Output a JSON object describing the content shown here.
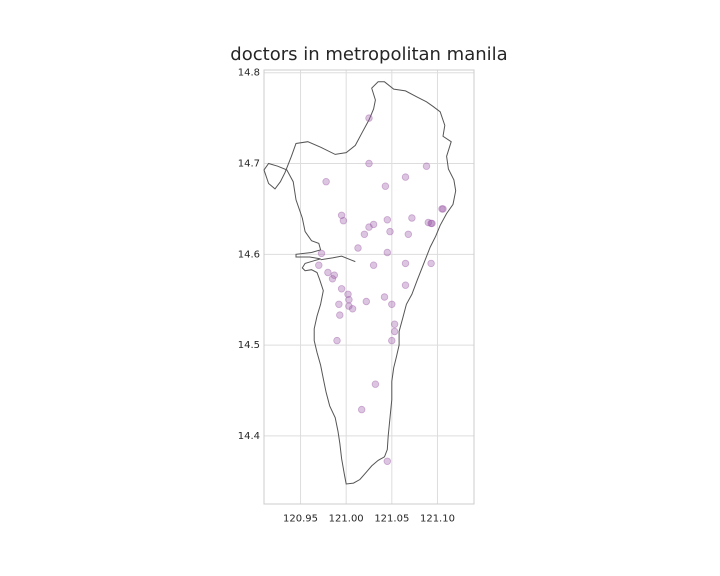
{
  "chart_data": {
    "type": "scatter",
    "title": "doctors in metropolitan manila",
    "xlabel": "",
    "ylabel": "",
    "xlim": [
      120.91,
      121.14
    ],
    "ylim": [
      14.325,
      14.803
    ],
    "xticks": [
      120.95,
      121.0,
      121.05,
      121.1
    ],
    "yticks": [
      14.4,
      14.5,
      14.6,
      14.7,
      14.8
    ],
    "xtick_labels": [
      "120.95",
      "121.00",
      "121.05",
      "121.10"
    ],
    "ytick_labels": [
      "14.4",
      "14.5",
      "14.6",
      "14.7",
      "14.8"
    ],
    "grid": true,
    "point_color": "#9b59a6",
    "boundary_color": "#555555",
    "boundary": [
      [
        121.0,
        14.347
      ],
      [
        120.998,
        14.358
      ],
      [
        120.995,
        14.375
      ],
      [
        120.993,
        14.392
      ],
      [
        120.991,
        14.405
      ],
      [
        120.988,
        14.42
      ],
      [
        120.982,
        14.433
      ],
      [
        120.978,
        14.448
      ],
      [
        120.975,
        14.463
      ],
      [
        120.972,
        14.478
      ],
      [
        120.968,
        14.492
      ],
      [
        120.965,
        14.505
      ],
      [
        120.965,
        14.518
      ],
      [
        120.968,
        14.532
      ],
      [
        120.972,
        14.545
      ],
      [
        120.975,
        14.56
      ],
      [
        120.971,
        14.572
      ],
      [
        120.968,
        14.58
      ],
      [
        120.962,
        14.583
      ],
      [
        120.955,
        14.582
      ],
      [
        120.952,
        14.585
      ],
      [
        120.955,
        14.59
      ],
      [
        120.965,
        14.593
      ],
      [
        120.972,
        14.595
      ],
      [
        120.96,
        14.597
      ],
      [
        120.945,
        14.597
      ],
      [
        120.945,
        14.6
      ],
      [
        120.962,
        14.602
      ],
      [
        120.972,
        14.605
      ],
      [
        120.97,
        14.612
      ],
      [
        120.962,
        14.615
      ],
      [
        120.955,
        14.625
      ],
      [
        120.952,
        14.64
      ],
      [
        120.945,
        14.66
      ],
      [
        120.942,
        14.68
      ],
      [
        120.935,
        14.693
      ],
      [
        120.925,
        14.697
      ],
      [
        120.915,
        14.7
      ],
      [
        120.91,
        14.693
      ],
      [
        120.915,
        14.678
      ],
      [
        120.922,
        14.672
      ],
      [
        120.928,
        14.68
      ],
      [
        120.933,
        14.69
      ],
      [
        120.94,
        14.708
      ],
      [
        120.945,
        14.722
      ],
      [
        120.958,
        14.724
      ],
      [
        120.972,
        14.718
      ],
      [
        120.988,
        14.71
      ],
      [
        121.0,
        14.712
      ],
      [
        121.01,
        14.72
      ],
      [
        121.018,
        14.735
      ],
      [
        121.025,
        14.748
      ],
      [
        121.03,
        14.76
      ],
      [
        121.032,
        14.77
      ],
      [
        121.028,
        14.783
      ],
      [
        121.035,
        14.79
      ],
      [
        121.042,
        14.79
      ],
      [
        121.052,
        14.782
      ],
      [
        121.065,
        14.78
      ],
      [
        121.078,
        14.773
      ],
      [
        121.088,
        14.768
      ],
      [
        121.095,
        14.763
      ],
      [
        121.103,
        14.757
      ],
      [
        121.108,
        14.742
      ],
      [
        121.106,
        14.73
      ],
      [
        121.115,
        14.724
      ],
      [
        121.11,
        14.708
      ],
      [
        121.112,
        14.694
      ],
      [
        121.118,
        14.682
      ],
      [
        121.12,
        14.67
      ],
      [
        121.117,
        14.655
      ],
      [
        121.11,
        14.645
      ],
      [
        121.103,
        14.632
      ],
      [
        121.098,
        14.62
      ],
      [
        121.092,
        14.608
      ],
      [
        121.085,
        14.59
      ],
      [
        121.078,
        14.572
      ],
      [
        121.072,
        14.556
      ],
      [
        121.066,
        14.545
      ],
      [
        121.062,
        14.53
      ],
      [
        121.058,
        14.515
      ],
      [
        121.058,
        14.5
      ],
      [
        121.055,
        14.487
      ],
      [
        121.052,
        14.475
      ],
      [
        121.05,
        14.46
      ],
      [
        121.05,
        14.44
      ],
      [
        121.048,
        14.42
      ],
      [
        121.046,
        14.4
      ],
      [
        121.045,
        14.385
      ],
      [
        121.042,
        14.377
      ],
      [
        121.035,
        14.373
      ],
      [
        121.028,
        14.367
      ],
      [
        121.022,
        14.36
      ],
      [
        121.015,
        14.352
      ],
      [
        121.008,
        14.348
      ],
      [
        121.0,
        14.347
      ]
    ],
    "river": [
      [
        120.972,
        14.594
      ],
      [
        120.985,
        14.596
      ],
      [
        120.995,
        14.598
      ],
      [
        121.005,
        14.594
      ],
      [
        121.01,
        14.592
      ]
    ],
    "points": [
      [
        121.025,
        14.75
      ],
      [
        121.025,
        14.7
      ],
      [
        120.978,
        14.68
      ],
      [
        121.065,
        14.685
      ],
      [
        121.088,
        14.697
      ],
      [
        121.043,
        14.675
      ],
      [
        120.995,
        14.643
      ],
      [
        120.997,
        14.637
      ],
      [
        121.025,
        14.63
      ],
      [
        121.03,
        14.633
      ],
      [
        121.045,
        14.638
      ],
      [
        121.072,
        14.64
      ],
      [
        121.09,
        14.635
      ],
      [
        121.093,
        14.634
      ],
      [
        121.094,
        14.634
      ],
      [
        121.105,
        14.65
      ],
      [
        121.106,
        14.65
      ],
      [
        121.02,
        14.622
      ],
      [
        121.048,
        14.625
      ],
      [
        121.068,
        14.622
      ],
      [
        121.013,
        14.607
      ],
      [
        120.973,
        14.601
      ],
      [
        121.045,
        14.602
      ],
      [
        120.97,
        14.588
      ],
      [
        121.03,
        14.588
      ],
      [
        121.065,
        14.59
      ],
      [
        121.093,
        14.59
      ],
      [
        120.98,
        14.58
      ],
      [
        120.987,
        14.577
      ],
      [
        120.985,
        14.573
      ],
      [
        121.065,
        14.566
      ],
      [
        120.995,
        14.562
      ],
      [
        121.002,
        14.556
      ],
      [
        121.003,
        14.55
      ],
      [
        121.022,
        14.548
      ],
      [
        121.042,
        14.553
      ],
      [
        120.992,
        14.545
      ],
      [
        121.003,
        14.543
      ],
      [
        121.007,
        14.54
      ],
      [
        121.05,
        14.545
      ],
      [
        120.993,
        14.533
      ],
      [
        121.053,
        14.523
      ],
      [
        121.053,
        14.515
      ],
      [
        120.99,
        14.505
      ],
      [
        121.05,
        14.505
      ],
      [
        121.032,
        14.457
      ],
      [
        121.017,
        14.429
      ],
      [
        121.045,
        14.372
      ]
    ]
  }
}
